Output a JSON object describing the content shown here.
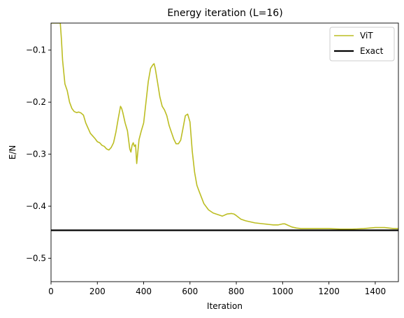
{
  "chart_data": {
    "type": "line",
    "title": "Energy iteration (L=16)",
    "xlabel": "Iteration",
    "ylabel": "E/N",
    "xlim": [
      0,
      1500
    ],
    "ylim": [
      -0.545,
      -0.048
    ],
    "xticks": [
      0,
      200,
      400,
      600,
      800,
      1000,
      1200,
      1400
    ],
    "xtick_labels": [
      "0",
      "200",
      "400",
      "600",
      "800",
      "1000",
      "1200",
      "1400"
    ],
    "yticks": [
      -0.1,
      -0.2,
      -0.3,
      -0.4,
      -0.5
    ],
    "ytick_labels": [
      "−0.1",
      "−0.2",
      "−0.3",
      "−0.4",
      "−0.5"
    ],
    "grid": false,
    "legend_position": "top-right",
    "series": [
      {
        "name": "ViT",
        "color": "#bcbd22",
        "style": "solid",
        "x": [
          0,
          40,
          45,
          50,
          60,
          70,
          80,
          90,
          100,
          110,
          120,
          130,
          140,
          150,
          160,
          170,
          180,
          190,
          200,
          210,
          220,
          230,
          240,
          250,
          260,
          270,
          280,
          290,
          300,
          305,
          310,
          320,
          330,
          340,
          345,
          350,
          355,
          360,
          365,
          370,
          375,
          380,
          390,
          400,
          410,
          420,
          430,
          440,
          445,
          450,
          460,
          470,
          480,
          490,
          500,
          510,
          520,
          530,
          540,
          550,
          560,
          570,
          580,
          590,
          600,
          610,
          620,
          630,
          640,
          660,
          680,
          700,
          720,
          740,
          760,
          780,
          790,
          800,
          820,
          840,
          860,
          880,
          900,
          920,
          940,
          960,
          980,
          1000,
          1010,
          1020,
          1040,
          1060,
          1080,
          1100,
          1150,
          1200,
          1250,
          1300,
          1350,
          1400,
          1420,
          1440,
          1460,
          1480,
          1500
        ],
        "y": [
          -0.048,
          -0.048,
          -0.08,
          -0.12,
          -0.165,
          -0.178,
          -0.2,
          -0.212,
          -0.218,
          -0.22,
          -0.219,
          -0.221,
          -0.225,
          -0.24,
          -0.25,
          -0.26,
          -0.265,
          -0.27,
          -0.276,
          -0.278,
          -0.283,
          -0.285,
          -0.29,
          -0.292,
          -0.287,
          -0.278,
          -0.258,
          -0.232,
          -0.208,
          -0.212,
          -0.22,
          -0.24,
          -0.255,
          -0.29,
          -0.296,
          -0.283,
          -0.278,
          -0.285,
          -0.282,
          -0.318,
          -0.295,
          -0.272,
          -0.255,
          -0.24,
          -0.2,
          -0.16,
          -0.135,
          -0.128,
          -0.126,
          -0.135,
          -0.162,
          -0.19,
          -0.208,
          -0.215,
          -0.226,
          -0.245,
          -0.258,
          -0.271,
          -0.28,
          -0.28,
          -0.273,
          -0.25,
          -0.226,
          -0.223,
          -0.238,
          -0.295,
          -0.335,
          -0.36,
          -0.372,
          -0.395,
          -0.407,
          -0.413,
          -0.416,
          -0.419,
          -0.415,
          -0.414,
          -0.415,
          -0.418,
          -0.425,
          -0.428,
          -0.43,
          -0.432,
          -0.433,
          -0.434,
          -0.435,
          -0.436,
          -0.436,
          -0.434,
          -0.434,
          -0.436,
          -0.44,
          -0.442,
          -0.443,
          -0.443,
          -0.443,
          -0.443,
          -0.444,
          -0.444,
          -0.443,
          -0.441,
          -0.441,
          -0.441,
          -0.442,
          -0.443,
          -0.443
        ]
      },
      {
        "name": "Exact",
        "color": "#000000",
        "style": "solid",
        "x": [
          0,
          1500
        ],
        "y": [
          -0.4463,
          -0.4463
        ]
      }
    ]
  }
}
